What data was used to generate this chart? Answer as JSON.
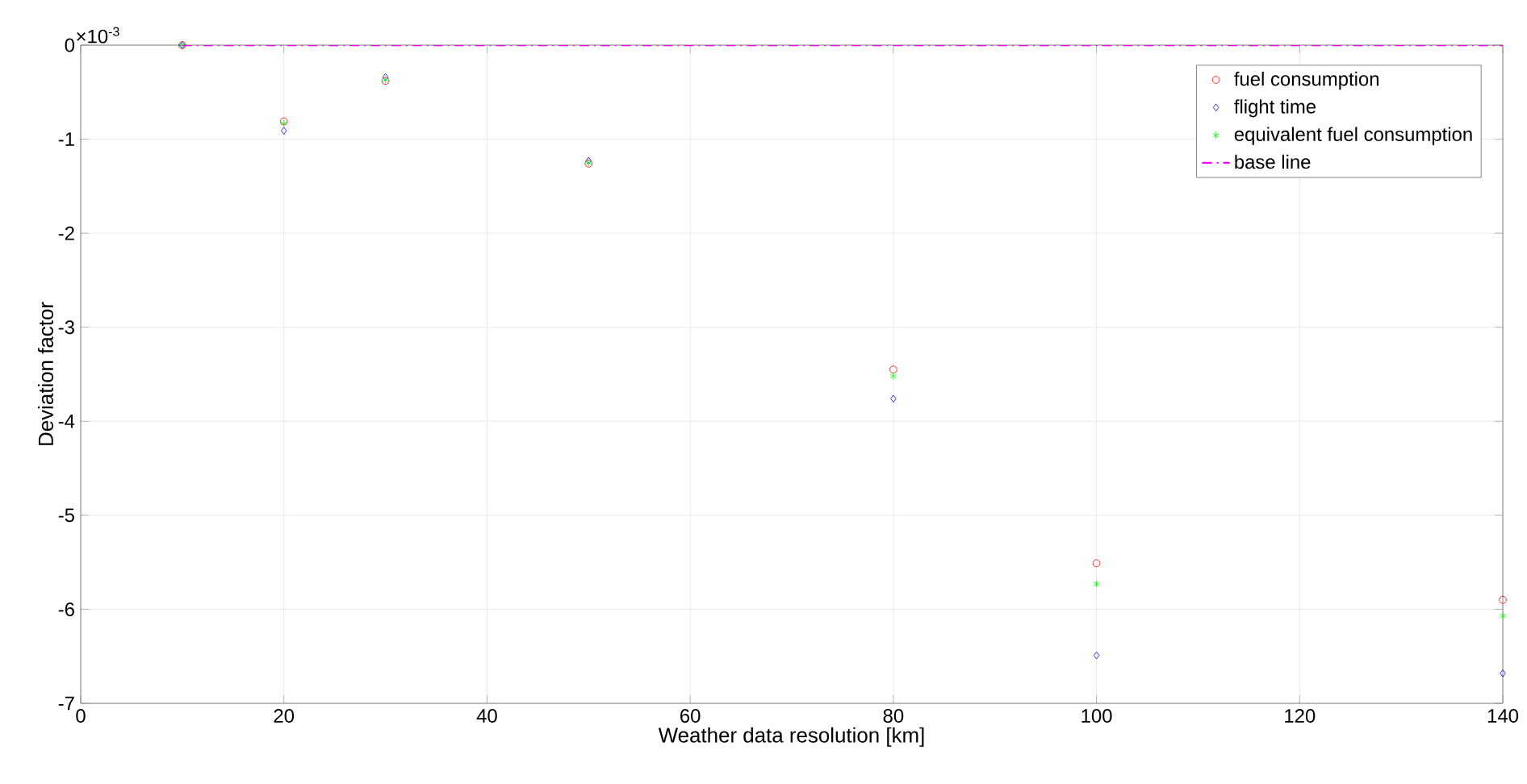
{
  "chart_data": {
    "type": "scatter",
    "xlabel": "Weather data resolution [km]",
    "ylabel": "Deviation factor",
    "x": [
      10,
      20,
      30,
      50,
      80,
      100,
      140
    ],
    "series": [
      {
        "name": "fuel consumption",
        "color": "#ff0000",
        "marker": "circle",
        "values": [
          0,
          -0.81,
          -0.38,
          -1.26,
          -3.45,
          -5.51,
          -5.9
        ]
      },
      {
        "name": "flight time",
        "color": "#0000ff",
        "marker": "diamond",
        "values": [
          0,
          -0.91,
          -0.34,
          -1.23,
          -3.76,
          -6.49,
          -6.68
        ]
      },
      {
        "name": "equivalent fuel consumption",
        "color": "#00ff00",
        "marker": "cross",
        "values": [
          0,
          -0.83,
          -0.37,
          -1.25,
          -3.52,
          -5.73,
          -6.07
        ]
      },
      {
        "name": "base line",
        "type": "line",
        "color": "#ff00ff",
        "marker": "none",
        "line_style": "dashed",
        "x": [
          10,
          140
        ],
        "values": [
          0,
          0
        ]
      }
    ],
    "xlim": [
      0,
      140
    ],
    "ylim": [
      -7,
      0
    ],
    "xticks": [
      0,
      20,
      40,
      60,
      80,
      100,
      120,
      140
    ],
    "yticks": [
      -7,
      -6,
      -5,
      -4,
      -3,
      -2,
      -1,
      0
    ],
    "annotations": [
      "×10$^{-3}$"
    ],
    "grid": true,
    "legend": "top right"
  }
}
